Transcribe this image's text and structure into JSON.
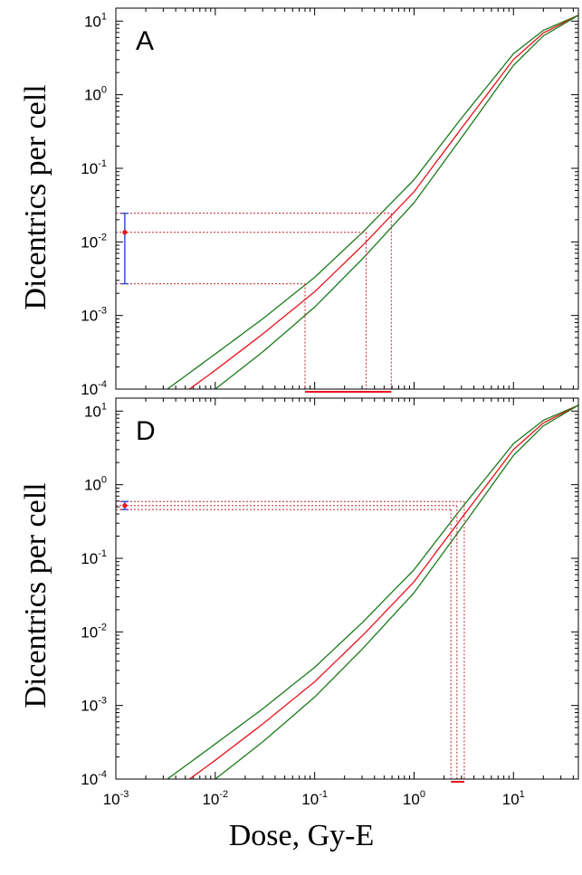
{
  "figure": {
    "xlabel": "Dose, Gy-E",
    "ylabel": "Dicentrics per cell"
  },
  "colors": {
    "central_curve": "#e8141e",
    "bound_curves": "#1a7a1a",
    "guide_lines": "#c0262e",
    "error_bar": "#3b4fd8",
    "dose_interval": "#e8141e"
  },
  "chart_data": [
    {
      "type": "line",
      "panel_label": "A",
      "xscale": "log",
      "yscale": "log",
      "xlim": [
        0.001,
        45
      ],
      "ylim": [
        0.0001,
        15
      ],
      "x_ticks": [
        {
          "base": "10",
          "exp": "-3",
          "value": 0.001
        },
        {
          "base": "10",
          "exp": "-2",
          "value": 0.01
        },
        {
          "base": "10",
          "exp": "-1",
          "value": 0.1
        },
        {
          "base": "10",
          "exp": "0",
          "value": 1
        },
        {
          "base": "10",
          "exp": "1",
          "value": 10
        }
      ],
      "y_ticks": [
        {
          "base": "10",
          "exp": "-4",
          "value": 0.0001
        },
        {
          "base": "10",
          "exp": "-3",
          "value": 0.001
        },
        {
          "base": "10",
          "exp": "-2",
          "value": 0.01
        },
        {
          "base": "10",
          "exp": "-1",
          "value": 0.1
        },
        {
          "base": "10",
          "exp": "0",
          "value": 1
        },
        {
          "base": "10",
          "exp": "1",
          "value": 10
        }
      ],
      "series": [
        {
          "role": "upper-bound",
          "x": [
            0.0033,
            0.01,
            0.03,
            0.1,
            0.3,
            1,
            3,
            10,
            20,
            45
          ],
          "y": [
            0.0001,
            0.0003,
            0.0009,
            0.0033,
            0.0133,
            0.07,
            0.48,
            3.6,
            7.5,
            12.0
          ]
        },
        {
          "role": "central",
          "x": [
            0.0055,
            0.01,
            0.03,
            0.1,
            0.3,
            1,
            3,
            10,
            20,
            45
          ],
          "y": [
            0.0001,
            0.00018,
            0.00056,
            0.0021,
            0.0088,
            0.048,
            0.35,
            3.0,
            6.9,
            12.0
          ]
        },
        {
          "role": "lower-bound",
          "x": [
            0.01,
            0.03,
            0.1,
            0.3,
            1,
            3,
            10,
            20,
            45
          ],
          "y": [
            0.0001,
            0.00032,
            0.0013,
            0.0058,
            0.034,
            0.26,
            2.5,
            6.3,
            12.0
          ]
        }
      ],
      "measurement": {
        "x": 0.00123,
        "y": 0.0135,
        "y_low": 0.0027,
        "y_high": 0.0245
      },
      "dose_estimate": {
        "low": 0.08,
        "central": 0.33,
        "high": 0.59
      }
    },
    {
      "type": "line",
      "panel_label": "D",
      "xscale": "log",
      "yscale": "log",
      "xlim": [
        0.001,
        45
      ],
      "ylim": [
        0.0001,
        15
      ],
      "x_ticks": [
        {
          "base": "10",
          "exp": "-3",
          "value": 0.001
        },
        {
          "base": "10",
          "exp": "-2",
          "value": 0.01
        },
        {
          "base": "10",
          "exp": "-1",
          "value": 0.1
        },
        {
          "base": "10",
          "exp": "0",
          "value": 1
        },
        {
          "base": "10",
          "exp": "1",
          "value": 10
        }
      ],
      "y_ticks": [
        {
          "base": "10",
          "exp": "-4",
          "value": 0.0001
        },
        {
          "base": "10",
          "exp": "-3",
          "value": 0.001
        },
        {
          "base": "10",
          "exp": "-2",
          "value": 0.01
        },
        {
          "base": "10",
          "exp": "-1",
          "value": 0.1
        },
        {
          "base": "10",
          "exp": "0",
          "value": 1
        },
        {
          "base": "10",
          "exp": "1",
          "value": 10
        }
      ],
      "series": [
        {
          "role": "upper-bound",
          "x": [
            0.0033,
            0.01,
            0.03,
            0.1,
            0.3,
            1,
            3,
            10,
            20,
            45
          ],
          "y": [
            0.0001,
            0.0003,
            0.0009,
            0.0033,
            0.0133,
            0.07,
            0.48,
            3.6,
            7.5,
            12.0
          ]
        },
        {
          "role": "central",
          "x": [
            0.0055,
            0.01,
            0.03,
            0.1,
            0.3,
            1,
            3,
            10,
            20,
            45
          ],
          "y": [
            0.0001,
            0.00018,
            0.00056,
            0.0021,
            0.0088,
            0.048,
            0.35,
            3.0,
            6.9,
            12.0
          ]
        },
        {
          "role": "lower-bound",
          "x": [
            0.01,
            0.03,
            0.1,
            0.3,
            1,
            3,
            10,
            20,
            45
          ],
          "y": [
            0.0001,
            0.00032,
            0.0013,
            0.0058,
            0.034,
            0.26,
            2.5,
            6.3,
            12.0
          ]
        }
      ],
      "measurement": {
        "x": 0.00123,
        "y": 0.52,
        "y_low": 0.46,
        "y_high": 0.59
      },
      "dose_estimate": {
        "low": 2.35,
        "central": 2.7,
        "high": 3.2
      }
    }
  ]
}
